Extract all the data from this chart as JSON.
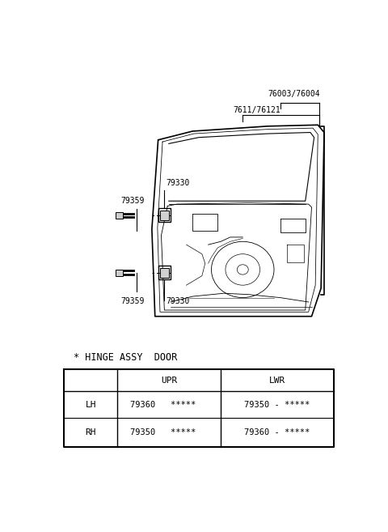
{
  "bg_color": "#ffffff",
  "fig_width": 4.8,
  "fig_height": 6.57,
  "dpi": 100,
  "table_title": "* HINGE ASSY  DOOR",
  "table": {
    "headers": [
      "",
      "UPR",
      "LWR"
    ],
    "rows": [
      {
        "label": "LH",
        "upr": "79360   *****",
        "lwr": "79350 - *****"
      },
      {
        "label": "RH",
        "upr": "79350   *****",
        "lwr": "79360 - *****"
      }
    ]
  }
}
